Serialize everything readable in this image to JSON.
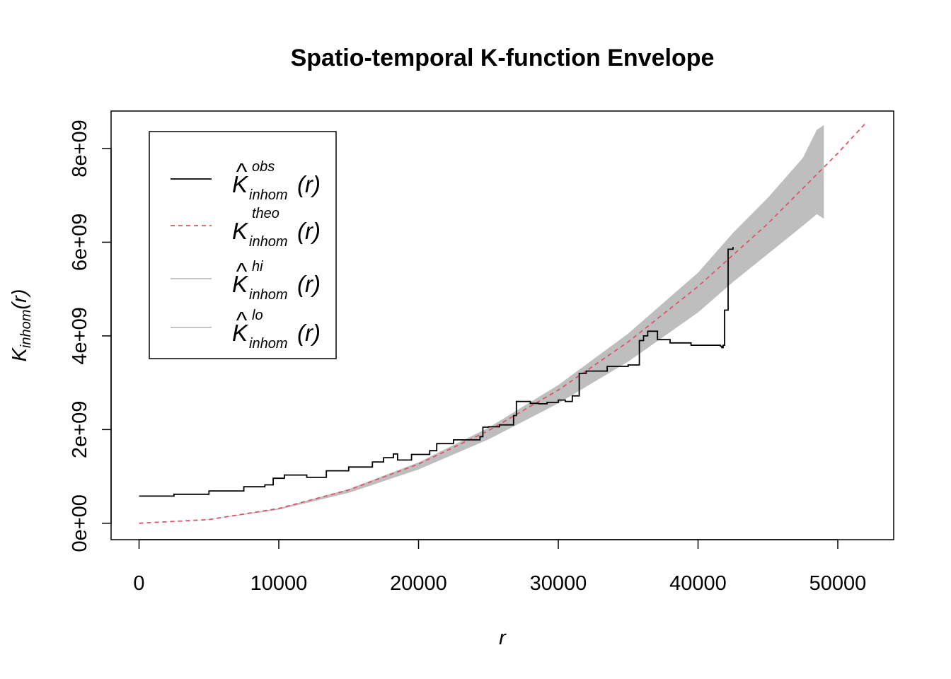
{
  "chart_data": {
    "type": "line",
    "title": "Spatio-temporal K-function Envelope",
    "xlabel": "r",
    "ylabel": {
      "main": "K",
      "subscript": "inhom",
      "suffix": "(r)"
    },
    "xlim": [
      -2000,
      54000
    ],
    "ylim": [
      -350000000,
      8800000000
    ],
    "x_ticks": [
      0,
      10000,
      20000,
      30000,
      40000,
      50000
    ],
    "x_tick_labels": [
      "0",
      "10000",
      "20000",
      "30000",
      "40000",
      "50000"
    ],
    "y_ticks": [
      0,
      2000000000,
      4000000000,
      6000000000,
      8000000000
    ],
    "y_tick_labels": [
      "0e+00",
      "2e+09",
      "4e+09",
      "6e+09",
      "8e+09"
    ],
    "grid": false,
    "legend_position": "top-left",
    "legend": [
      {
        "hat": true,
        "base": "K",
        "sup": "obs",
        "sub": "inhom",
        "suffix": "(r)",
        "color": "#000000",
        "dash": "solid"
      },
      {
        "hat": false,
        "base": "K",
        "sup": "theo",
        "sub": "inhom",
        "suffix": "(r)",
        "color": "#DF536B",
        "dash": "dashed"
      },
      {
        "hat": true,
        "base": "K",
        "sup": "hi",
        "sub": "inhom",
        "suffix": "(r)",
        "color": "#BEBEBE",
        "dash": "solid"
      },
      {
        "hat": true,
        "base": "K",
        "sup": "lo",
        "sub": "inhom",
        "suffix": "(r)",
        "color": "#BEBEBE",
        "dash": "solid"
      }
    ],
    "series": [
      {
        "role": "obs",
        "color": "#000000",
        "step": true,
        "x": [
          0,
          2500,
          5000,
          7500,
          9000,
          9600,
          10400,
          12000,
          13400,
          15000,
          16700,
          17500,
          18200,
          18500,
          19500,
          20800,
          21300,
          22500,
          24400,
          24600,
          25000,
          25800,
          26800,
          27000,
          28000,
          28600,
          29200,
          30000,
          30500,
          31000,
          31500,
          32000,
          33500,
          35000,
          35800,
          36100,
          36400,
          37100,
          38000,
          39500,
          41600,
          41700,
          41800,
          41900,
          42150,
          42500
        ],
        "y": [
          580000000,
          620000000,
          690000000,
          780000000,
          820000000,
          960000000,
          1030000000,
          980000000,
          1120000000,
          1200000000,
          1310000000,
          1400000000,
          1480000000,
          1350000000,
          1470000000,
          1550000000,
          1700000000,
          1780000000,
          1850000000,
          2050000000,
          2060000000,
          2100000000,
          2300000000,
          2600000000,
          2560000000,
          2550000000,
          2580000000,
          2630000000,
          2600000000,
          2720000000,
          3200000000,
          3250000000,
          3350000000,
          3380000000,
          3900000000,
          4000000000,
          4100000000,
          3920000000,
          3850000000,
          3800000000,
          3780000000,
          3750000000,
          3800000000,
          4550000000,
          5850000000,
          5900000000
        ]
      },
      {
        "role": "theo",
        "color": "#DF536B",
        "x": [
          0,
          5000,
          10000,
          15000,
          20000,
          25000,
          30000,
          35000,
          40000,
          45000,
          50000,
          52000
        ],
        "y": [
          0,
          79000000,
          316000000,
          711000000,
          1264000000,
          1975000000,
          2844000000,
          3871000000,
          5056000000,
          6399000000,
          7900000000,
          8545000000
        ]
      },
      {
        "role": "hi",
        "color": "#BEBEBE",
        "x": [
          0,
          5000,
          10000,
          15000,
          20000,
          25000,
          30000,
          35000,
          40000,
          42500,
          45000,
          47500,
          48500,
          49000
        ],
        "y": [
          0,
          80000000,
          320000000,
          730000000,
          1300000000,
          2040000000,
          2950000000,
          4050000000,
          5350000000,
          6200000000,
          6950000000,
          7800000000,
          8400000000,
          8500000000
        ]
      },
      {
        "role": "lo",
        "color": "#BEBEBE",
        "x": [
          0,
          5000,
          10000,
          15000,
          20000,
          25000,
          30000,
          35000,
          40000,
          42500,
          45000,
          47500,
          48500,
          49000
        ],
        "y": [
          0,
          75000000,
          290000000,
          650000000,
          1150000000,
          1790000000,
          2560000000,
          3450000000,
          4500000000,
          5150000000,
          5750000000,
          6350000000,
          6600000000,
          6500000000
        ]
      }
    ]
  }
}
